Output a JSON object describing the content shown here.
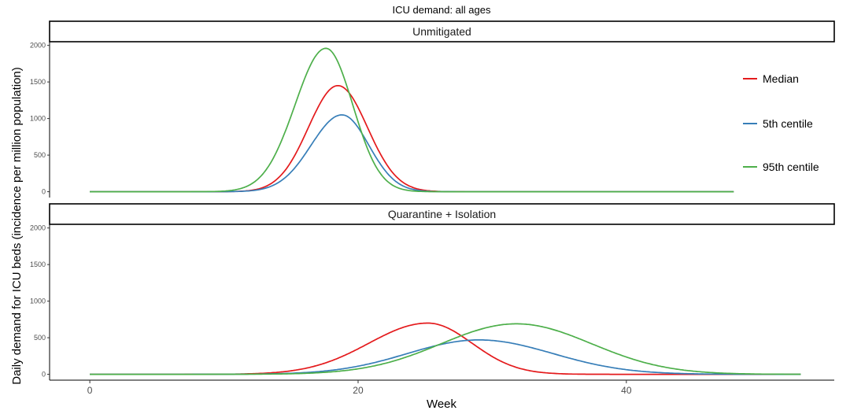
{
  "chart_data": {
    "type": "line",
    "title": "ICU demand: all ages",
    "xlabel": "Week",
    "ylabel": "Daily demand for ICU beds (incidence per million population)",
    "xlim": [
      -3,
      55.5
    ],
    "ylim": [
      -80,
      2050
    ],
    "x_ticks": [
      0,
      20,
      40
    ],
    "y_ticks": [
      0,
      500,
      1000,
      1500,
      2000
    ],
    "legend": {
      "position": "right",
      "entries": [
        {
          "name": "Median",
          "color": "#e41a1c"
        },
        {
          "name": "5th centile",
          "color": "#377eb8"
        },
        {
          "name": "95th centile",
          "color": "#4daf4a"
        }
      ]
    },
    "panels": [
      {
        "label": "Unmitigated",
        "x_end": 48,
        "series": [
          {
            "name": "Median",
            "color": "#e41a1c",
            "peak_week": 18.5,
            "peak": 1450,
            "sd_left": 2.2,
            "sd_right": 2.2
          },
          {
            "name": "5th centile",
            "color": "#377eb8",
            "peak_week": 18.8,
            "peak": 1050,
            "sd_left": 2.3,
            "sd_right": 2.0
          },
          {
            "name": "95th centile",
            "color": "#4daf4a",
            "peak_week": 17.6,
            "peak": 1960,
            "sd_left": 2.3,
            "sd_right": 2.0
          }
        ]
      },
      {
        "label": "Quarantine + Isolation",
        "x_end": 53,
        "series": [
          {
            "name": "Median",
            "color": "#e41a1c",
            "peak_week": 25.2,
            "peak": 700,
            "sd_left": 4.4,
            "sd_right": 3.3
          },
          {
            "name": "5th centile",
            "color": "#377eb8",
            "peak_week": 29.0,
            "peak": 470,
            "sd_left": 5.3,
            "sd_right": 5.5
          },
          {
            "name": "95th centile",
            "color": "#4daf4a",
            "peak_week": 31.8,
            "peak": 690,
            "sd_left": 5.6,
            "sd_right": 5.6
          }
        ]
      }
    ]
  }
}
